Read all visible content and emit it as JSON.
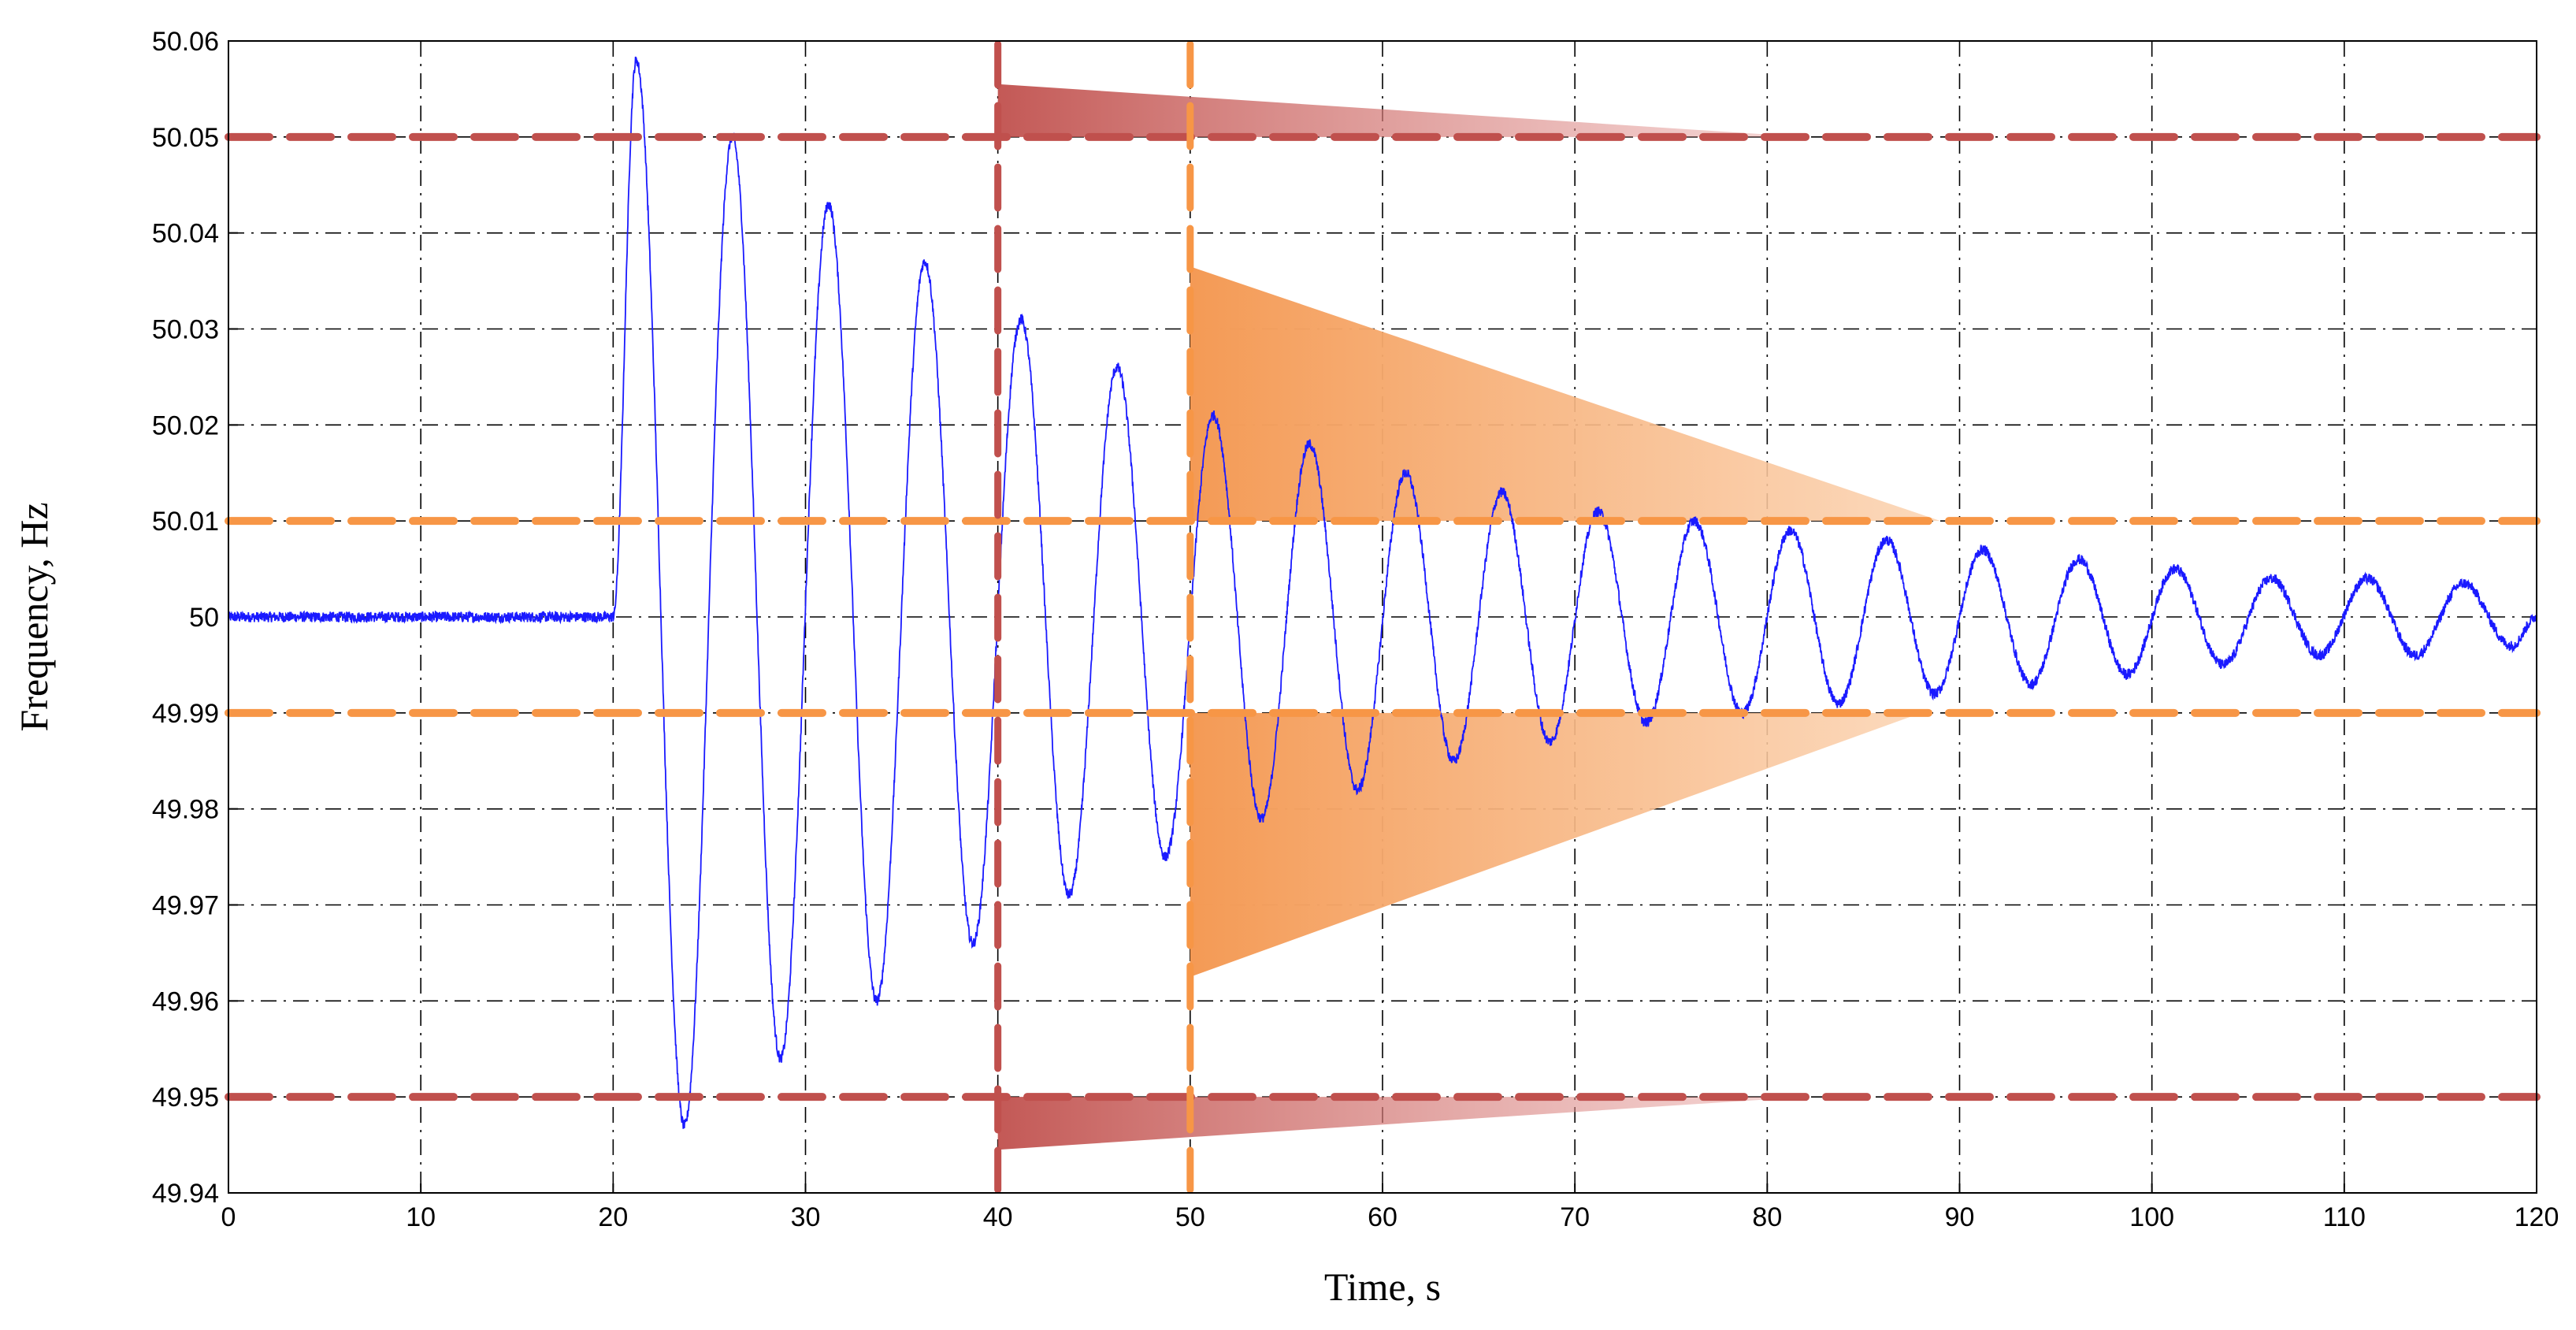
{
  "chart_data": {
    "type": "line",
    "title": "",
    "xlabel": "Time, s",
    "ylabel": "Frequency, Hz",
    "xlim": [
      0,
      120
    ],
    "ylim": [
      49.94,
      50.06
    ],
    "grid": true,
    "x_ticks": [
      0,
      10,
      20,
      30,
      40,
      50,
      60,
      70,
      80,
      90,
      100,
      110,
      120
    ],
    "y_ticks": [
      {
        "value": 49.94,
        "label": "49.94"
      },
      {
        "value": 49.95,
        "label": "49.95"
      },
      {
        "value": 49.96,
        "label": "49.96"
      },
      {
        "value": 49.97,
        "label": "49.97"
      },
      {
        "value": 49.98,
        "label": "49.98"
      },
      {
        "value": 49.99,
        "label": "49.99"
      },
      {
        "value": 50.0,
        "label": "50"
      },
      {
        "value": 50.01,
        "label": "50.01"
      },
      {
        "value": 50.02,
        "label": "50.02"
      },
      {
        "value": 50.03,
        "label": "50.03"
      },
      {
        "value": 50.04,
        "label": "50.04"
      },
      {
        "value": 50.05,
        "label": "50.05"
      },
      {
        "value": 50.06,
        "label": "50.06"
      }
    ],
    "series": [
      {
        "name": "frequency",
        "color": "#1a1aff",
        "x": [
          0,
          20,
          20,
          21.2,
          23.7,
          26.2,
          28.7,
          31.2,
          33.7,
          36.2,
          38.7,
          41.2,
          43.7,
          46.2,
          48.7,
          51.2,
          53.7,
          56.2,
          58.7,
          61.2,
          63.7,
          66.2,
          68.7,
          71.2,
          73.7,
          76.2,
          78.7,
          81.2,
          83.7,
          86.2,
          88.7,
          91.2,
          93.7,
          96.2,
          98.7,
          101.2,
          103.7,
          106.2,
          108.7,
          111.2,
          113.7,
          116.2,
          118.7,
          120
        ],
        "values": [
          50.0,
          50.0,
          50.0,
          50.058,
          49.947,
          50.05,
          49.954,
          50.043,
          49.96,
          50.037,
          49.966,
          50.031,
          49.971,
          50.026,
          49.975,
          50.021,
          49.979,
          50.018,
          49.982,
          50.015,
          49.985,
          50.013,
          49.987,
          50.011,
          49.989,
          50.01,
          49.99,
          50.009,
          49.991,
          50.008,
          49.992,
          50.007,
          49.993,
          50.006,
          49.994,
          50.005,
          49.995,
          50.004,
          49.996,
          50.004,
          49.996,
          50.0035,
          49.997,
          50.0
        ]
      }
    ],
    "reference_lines": [
      {
        "orientation": "horizontal",
        "value": 50.05,
        "color": "#c0504d"
      },
      {
        "orientation": "horizontal",
        "value": 49.95,
        "color": "#c0504d"
      },
      {
        "orientation": "horizontal",
        "value": 50.01,
        "color": "#f79646"
      },
      {
        "orientation": "horizontal",
        "value": 49.99,
        "color": "#f79646"
      },
      {
        "orientation": "vertical",
        "value": 40,
        "color": "#c0504d"
      },
      {
        "orientation": "vertical",
        "value": 50,
        "color": "#f79646"
      }
    ],
    "shaded_regions": [
      {
        "name": "upper-red-wedge",
        "x_start": 40,
        "x_end": 82,
        "y_base": 50.05,
        "y_peak": 50.0555,
        "color": "#c0504d"
      },
      {
        "name": "lower-red-wedge",
        "x_start": 40,
        "x_end": 82,
        "y_base": 49.95,
        "y_peak": 49.9445,
        "color": "#c0504d"
      },
      {
        "name": "upper-orange-wedge",
        "x_start": 50,
        "x_end": 89,
        "y_base": 50.01,
        "y_peak": 50.0365,
        "color": "#f79646"
      },
      {
        "name": "lower-orange-wedge",
        "x_start": 50,
        "x_end": 88,
        "y_base": 49.99,
        "y_peak": 49.9625,
        "color": "#f79646"
      }
    ]
  }
}
